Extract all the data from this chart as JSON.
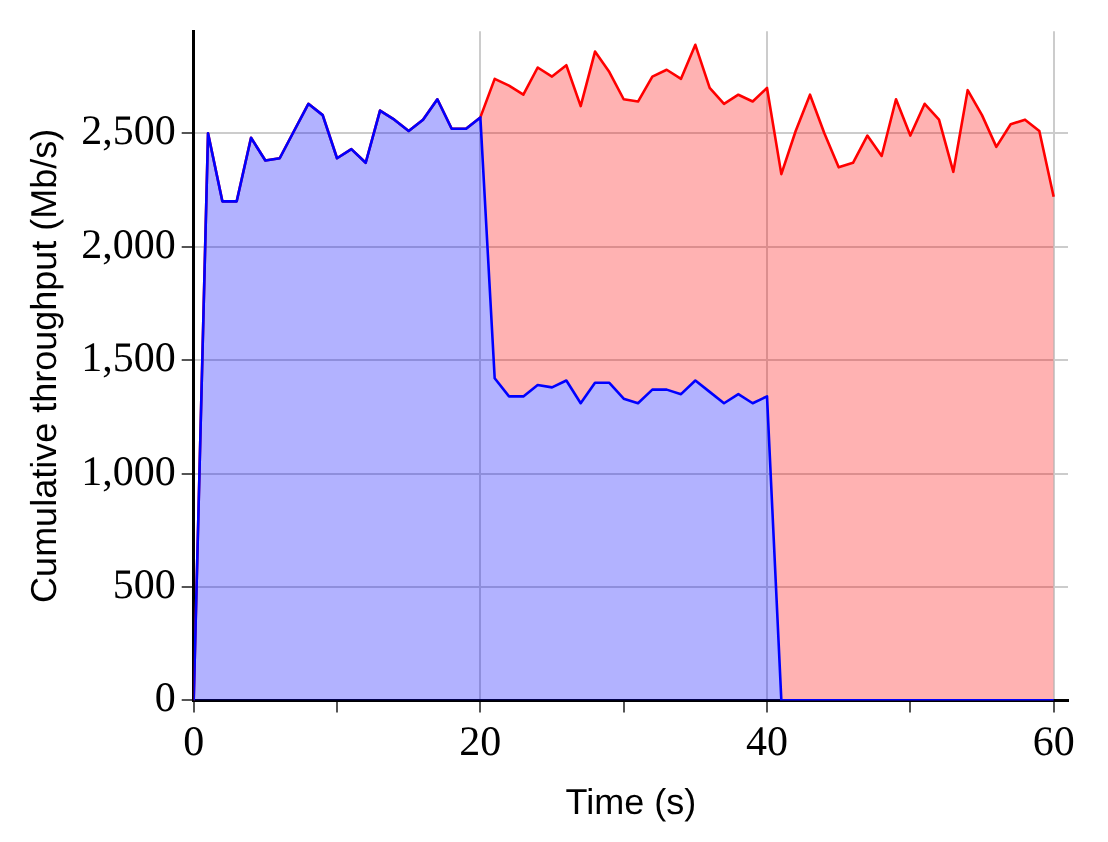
{
  "chart_data": {
    "type": "area",
    "stacked": true,
    "xlabel": "Time (s)",
    "ylabel": "Cumulative throughput (Mb/s)",
    "x": [
      0,
      1,
      2,
      3,
      4,
      5,
      6,
      7,
      8,
      9,
      10,
      11,
      12,
      13,
      14,
      15,
      16,
      17,
      18,
      19,
      20,
      21,
      22,
      23,
      24,
      25,
      26,
      27,
      28,
      29,
      30,
      31,
      32,
      33,
      34,
      35,
      36,
      37,
      38,
      39,
      40,
      41,
      42,
      43,
      44,
      45,
      46,
      47,
      48,
      49,
      50,
      51,
      52,
      53,
      54,
      55,
      56,
      57,
      58,
      59,
      60
    ],
    "series": [
      {
        "color": "#0000ff",
        "values": [
          0,
          2500,
          2200,
          2200,
          2480,
          2380,
          2390,
          2510,
          2630,
          2580,
          2390,
          2430,
          2370,
          2600,
          2560,
          2510,
          2560,
          2650,
          2520,
          2520,
          2570,
          1420,
          1340,
          1340,
          1390,
          1380,
          1410,
          1310,
          1400,
          1400,
          1330,
          1310,
          1370,
          1370,
          1350,
          1410,
          1360,
          1310,
          1350,
          1310,
          1340,
          0,
          0,
          0,
          0,
          0,
          0,
          0,
          0,
          0,
          0,
          0,
          0,
          0,
          0,
          0,
          0,
          0,
          0,
          0,
          0
        ]
      },
      {
        "color": "#ff0000",
        "values": [
          0,
          0,
          0,
          0,
          0,
          0,
          0,
          0,
          0,
          0,
          0,
          0,
          0,
          0,
          0,
          0,
          0,
          0,
          0,
          0,
          0,
          1320,
          1370,
          1330,
          1400,
          1370,
          1390,
          1310,
          1460,
          1370,
          1320,
          1330,
          1380,
          1410,
          1390,
          1480,
          1340,
          1320,
          1320,
          1330,
          1360,
          2320,
          2510,
          2670,
          2500,
          2350,
          2370,
          2490,
          2400,
          2650,
          2490,
          2630,
          2560,
          2330,
          2690,
          2580,
          2440,
          2540,
          2560,
          2510,
          2220
        ]
      }
    ],
    "xlim": [
      0,
      61
    ],
    "xticks": [
      0,
      {
        "value": 10,
        "label": null
      },
      20,
      {
        "value": 30,
        "label": null
      },
      40,
      {
        "value": 50,
        "label": null
      },
      60
    ],
    "ylim": [
      0,
      2950
    ],
    "yticks": [
      {
        "value": 0,
        "label": "0"
      },
      {
        "value": 500,
        "label": "500"
      },
      {
        "value": 1000,
        "label": "1,000"
      },
      {
        "value": 1500,
        "label": "1,500"
      },
      {
        "value": 2000,
        "label": "2,000"
      },
      {
        "value": 2500,
        "label": "2,500"
      }
    ],
    "grid": true,
    "legend": false,
    "marker": "none",
    "line_style": "solid"
  }
}
